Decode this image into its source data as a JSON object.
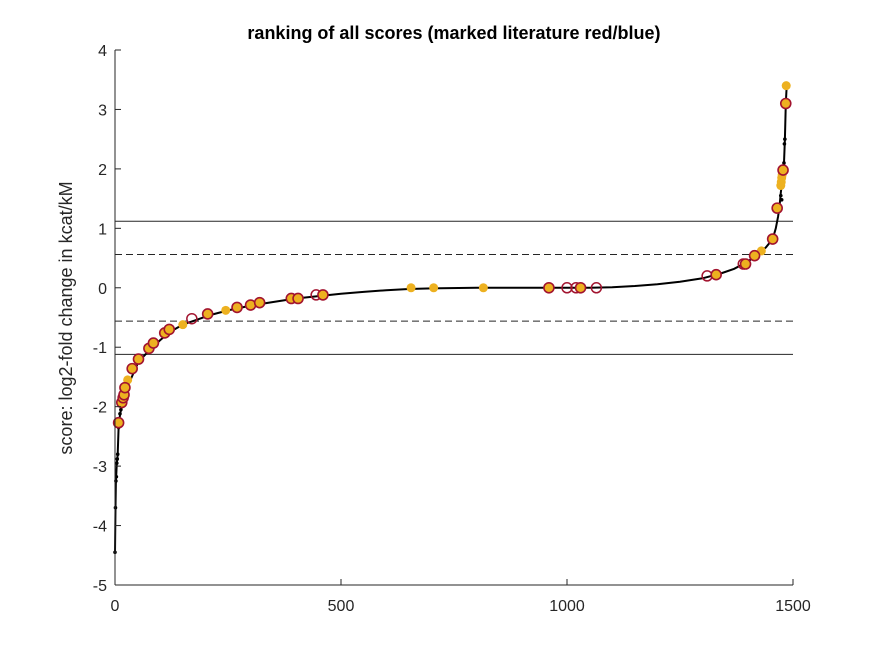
{
  "chart_data": {
    "type": "scatter",
    "title": "ranking of all scores (marked literature red/blue)",
    "xlabel": "",
    "ylabel": "score: log2-fold change in kcat/kM",
    "xlim": [
      0,
      1500
    ],
    "ylim": [
      -5,
      4
    ],
    "xticks": [
      0,
      500,
      1000,
      1500
    ],
    "yticks": [
      -5,
      -4,
      -3,
      -2,
      -1,
      0,
      1,
      2,
      3,
      4
    ],
    "grid": false,
    "legend": "none",
    "colors": {
      "curve": "#000000",
      "literature_fill": "#EDB120",
      "literature_edge": "#A2142F",
      "threshold": "#262626"
    },
    "thresholds": {
      "solid": [
        1.12,
        -1.12
      ],
      "dashed": [
        0.56,
        -0.56
      ]
    },
    "series": [
      {
        "style": "ranked-curve",
        "points": [
          [
            0,
            -4.45
          ],
          [
            1,
            -3.7
          ],
          [
            2,
            -3.25
          ],
          [
            3,
            -3.1
          ],
          [
            4,
            -2.95
          ],
          [
            5,
            -2.88
          ],
          [
            6,
            -2.8
          ],
          [
            8,
            -2.35
          ],
          [
            10,
            -2.2
          ],
          [
            12,
            -2.1
          ],
          [
            15,
            -2.0
          ],
          [
            20,
            -1.9
          ],
          [
            25,
            -1.75
          ],
          [
            30,
            -1.62
          ],
          [
            40,
            -1.45
          ],
          [
            50,
            -1.28
          ],
          [
            60,
            -1.18
          ],
          [
            80,
            -1.02
          ],
          [
            100,
            -0.88
          ],
          [
            120,
            -0.75
          ],
          [
            150,
            -0.62
          ],
          [
            180,
            -0.54
          ],
          [
            210,
            -0.46
          ],
          [
            250,
            -0.38
          ],
          [
            300,
            -0.3
          ],
          [
            350,
            -0.24
          ],
          [
            400,
            -0.18
          ],
          [
            450,
            -0.14
          ],
          [
            500,
            -0.1
          ],
          [
            550,
            -0.07
          ],
          [
            600,
            -0.04
          ],
          [
            650,
            -0.02
          ],
          [
            700,
            -0.01
          ],
          [
            800,
            0.0
          ],
          [
            900,
            0.0
          ],
          [
            1000,
            0.0
          ],
          [
            1050,
            0.0
          ],
          [
            1100,
            0.01
          ],
          [
            1150,
            0.03
          ],
          [
            1200,
            0.06
          ],
          [
            1250,
            0.1
          ],
          [
            1300,
            0.16
          ],
          [
            1340,
            0.24
          ],
          [
            1370,
            0.32
          ],
          [
            1400,
            0.44
          ],
          [
            1420,
            0.55
          ],
          [
            1440,
            0.68
          ],
          [
            1455,
            0.82
          ],
          [
            1462,
            1.0
          ],
          [
            1467,
            1.2
          ],
          [
            1470,
            1.35
          ],
          [
            1473,
            1.6
          ],
          [
            1476,
            1.8
          ],
          [
            1478,
            2.0
          ],
          [
            1480,
            2.1
          ],
          [
            1482,
            2.5
          ],
          [
            1484,
            3.1
          ],
          [
            1486,
            3.4
          ]
        ]
      },
      {
        "style": "ranked-points",
        "points": [
          [
            0,
            -4.45
          ],
          [
            1,
            -3.7
          ],
          [
            2,
            -3.25
          ],
          [
            3,
            -3.18
          ],
          [
            4,
            -2.95
          ],
          [
            5,
            -2.88
          ],
          [
            6,
            -2.8
          ],
          [
            8,
            -2.35
          ],
          [
            11,
            -2.12
          ],
          [
            13,
            -2.05
          ],
          [
            1473,
            1.55
          ],
          [
            1475,
            1.48
          ],
          [
            1480,
            2.1
          ],
          [
            1481,
            2.42
          ],
          [
            1482,
            2.5
          ]
        ]
      },
      {
        "style": "literature-filled",
        "points": [
          [
            28,
            -1.55
          ],
          [
            150,
            -0.62
          ],
          [
            245,
            -0.38
          ],
          [
            655,
            0.0
          ],
          [
            705,
            0.0
          ],
          [
            815,
            0.0
          ],
          [
            1430,
            0.62
          ],
          [
            1473,
            1.72
          ],
          [
            1474,
            1.78
          ],
          [
            1475,
            1.85
          ],
          [
            1476,
            1.9
          ],
          [
            1485,
            3.4
          ]
        ]
      },
      {
        "style": "literature-circled",
        "points": [
          [
            8,
            -2.27
          ],
          [
            15,
            -1.93
          ],
          [
            18,
            -1.85
          ],
          [
            20,
            -1.8
          ],
          [
            22,
            -1.68
          ],
          [
            38,
            -1.36
          ],
          [
            52,
            -1.2
          ],
          [
            75,
            -1.02
          ],
          [
            85,
            -0.93
          ],
          [
            110,
            -0.76
          ],
          [
            120,
            -0.7
          ],
          [
            205,
            -0.44
          ],
          [
            270,
            -0.33
          ],
          [
            300,
            -0.29
          ],
          [
            320,
            -0.25
          ],
          [
            390,
            -0.18
          ],
          [
            405,
            -0.18
          ],
          [
            460,
            -0.12
          ],
          [
            960,
            0.0
          ],
          [
            1030,
            0.0
          ],
          [
            1415,
            0.54
          ],
          [
            1455,
            0.82
          ],
          [
            1465,
            1.34
          ],
          [
            1478,
            1.98
          ],
          [
            1484,
            3.1
          ],
          [
            1330,
            0.22
          ],
          [
            1395,
            0.4
          ]
        ]
      },
      {
        "style": "literature-open",
        "points": [
          [
            170,
            -0.52
          ],
          [
            445,
            -0.12
          ],
          [
            1000,
            0.0
          ],
          [
            1020,
            0.0
          ],
          [
            1065,
            0.0
          ],
          [
            1310,
            0.2
          ],
          [
            1390,
            0.4
          ]
        ]
      }
    ]
  }
}
